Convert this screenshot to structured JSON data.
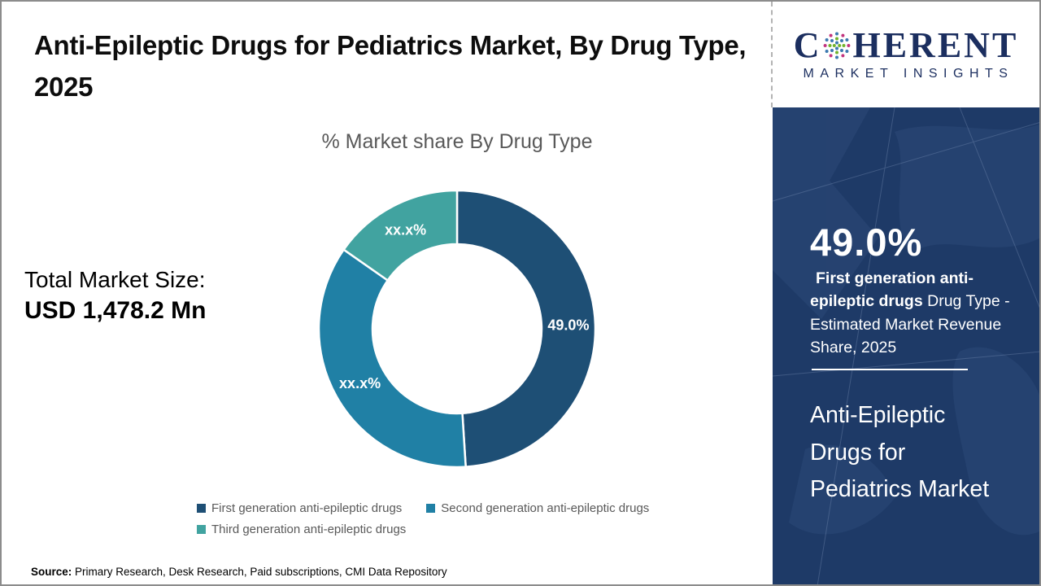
{
  "slide": {
    "title": "Anti-Epileptic Drugs for Pediatrics Market, By Drug Type, 2025",
    "total_market_label": "Total Market Size:",
    "total_market_value": "USD 1,478.2 Mn",
    "source_label": "Source:",
    "source_text": " Primary Research, Desk Research, Paid subscriptions, CMI Data Repository"
  },
  "logo": {
    "word_start": "C",
    "word_end": "HERENT",
    "subtitle": "MARKET INSIGHTS"
  },
  "sidebar": {
    "stat_value": "49.0%",
    "stat_bold": "First generation anti-epileptic drugs",
    "stat_rest": " Drug Type - Estimated Market Revenue Share, 2025",
    "market_name": "Anti-Epileptic Drugs for Pediatrics Market"
  },
  "chart_data": {
    "type": "pie",
    "subtype": "donut",
    "title": "% Market share By Drug Type",
    "legend_position": "bottom",
    "start_angle_deg": 0,
    "direction": "clockwise",
    "segments": [
      {
        "label": "First generation anti-epileptic drugs",
        "display": "49.0%",
        "value": 49.0,
        "color": "#1e4f75",
        "estimated": false
      },
      {
        "label": "Second generation anti-epileptic drugs",
        "display": "xx.x%",
        "value": 35.7,
        "color": "#2080a5",
        "estimated": true
      },
      {
        "label": "Third generation anti-epileptic drugs",
        "display": "xx.x%",
        "value": 15.3,
        "color": "#41a3a0",
        "estimated": true
      }
    ]
  },
  "colors": {
    "sidebar_bg": "#1e3a67",
    "logo_navy": "#1b2e5f",
    "logo_dot_green": "#72b32c",
    "logo_dot_blue": "#3c79b0",
    "logo_dot_magenta": "#c2347e",
    "chart_title_gray": "#595959",
    "title_black": "#0d0d0d"
  }
}
